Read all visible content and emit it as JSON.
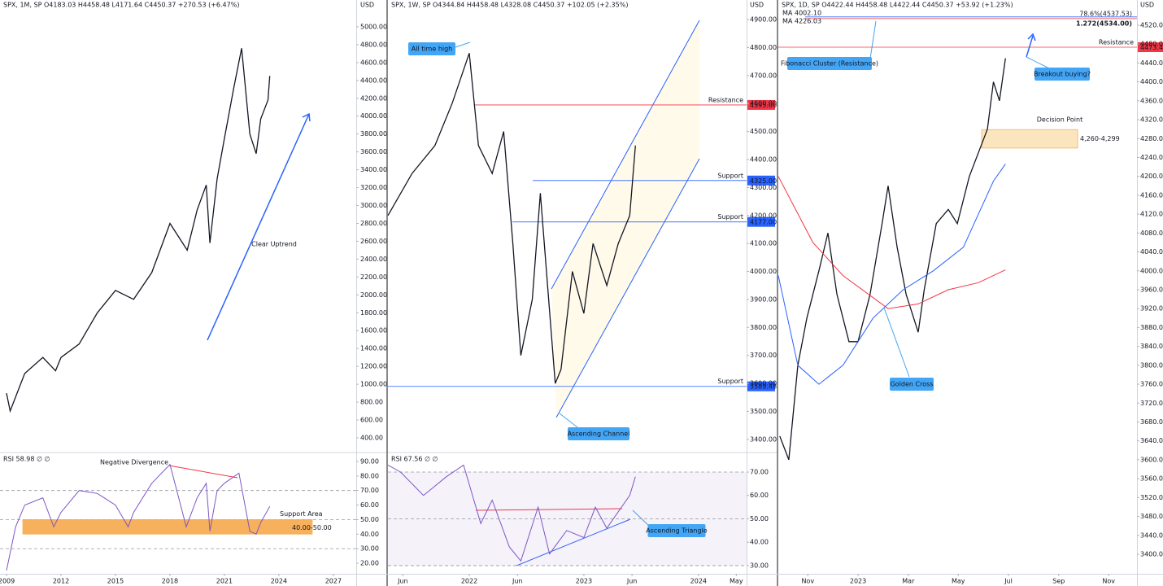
{
  "chart_data": [
    {
      "type": "line",
      "title": "SPX, 1M, SP  O4183.03  H4458.48  L4171.64  C4450.37  +270.53 (+6.47%)",
      "unit": "USD",
      "xlim": [
        2008.64,
        2028.26
      ],
      "ylim": [
        245,
        5300
      ],
      "yticks": [
        {
          "value": 400,
          "label": "400.00"
        },
        {
          "value": 600,
          "label": "600.00"
        },
        {
          "value": 800,
          "label": "800.00"
        },
        {
          "value": 1000,
          "label": "1000.00"
        },
        {
          "value": 1200,
          "label": "1200.00"
        },
        {
          "value": 1400,
          "label": "1400.00"
        },
        {
          "value": 1600,
          "label": "1600.00"
        },
        {
          "value": 1800,
          "label": "1800.00"
        },
        {
          "value": 2000,
          "label": "2000.00"
        },
        {
          "value": 2200,
          "label": "2200.00"
        },
        {
          "value": 2400,
          "label": "2400.00"
        },
        {
          "value": 2600,
          "label": "2600.00"
        },
        {
          "value": 2800,
          "label": "2800.00"
        },
        {
          "value": 3000,
          "label": "3000.00"
        },
        {
          "value": 3200,
          "label": "3200.00"
        },
        {
          "value": 3400,
          "label": "3400.00"
        },
        {
          "value": 3600,
          "label": "3600.00"
        },
        {
          "value": 3800,
          "label": "3800.00"
        },
        {
          "value": 4000,
          "label": "4000.00"
        },
        {
          "value": 4200,
          "label": "4200.00"
        },
        {
          "value": 4400,
          "label": "4400.00"
        },
        {
          "value": 4600,
          "label": "4600.00"
        },
        {
          "value": 4800,
          "label": "4800.00"
        },
        {
          "value": 5000,
          "label": "5000.00"
        }
      ],
      "series": [
        {
          "color": "#131722",
          "x": [
            2009.0,
            2009.2,
            2010.0,
            2011.0,
            2011.7,
            2012.0,
            2013.0,
            2014.0,
            2015.0,
            2016.0,
            2017.0,
            2018.0,
            2018.95,
            2019.5,
            2020.0,
            2020.2,
            2020.6,
            2021.0,
            2021.5,
            2021.95,
            2022.4,
            2022.75,
            2023.0,
            2023.4,
            2023.5
          ],
          "values": [
            900,
            700,
            1120,
            1300,
            1150,
            1300,
            1450,
            1800,
            2050,
            1950,
            2250,
            2800,
            2500,
            2950,
            3230,
            2580,
            3300,
            3750,
            4300,
            4760,
            3800,
            3580,
            3970,
            4180,
            4450
          ]
        }
      ],
      "annotations": [
        "Clear Uptrend"
      ]
    },
    {
      "type": "line",
      "title": "RSI  58.98  ∅  ∅",
      "xlim": [
        2008.64,
        2028.26
      ],
      "ylim": [
        12.7,
        95.6
      ],
      "xticks": [
        2009,
        2012,
        2015,
        2018,
        2021,
        2024,
        2027
      ],
      "yticks": [
        {
          "value": 20,
          "label": "20.00"
        },
        {
          "value": 30,
          "label": "30.00"
        },
        {
          "value": 40,
          "label": "40.00"
        },
        {
          "value": 50,
          "label": "50.00"
        },
        {
          "value": 60,
          "label": "60.00"
        },
        {
          "value": 70,
          "label": "70.00"
        },
        {
          "value": 80,
          "label": "80.00"
        },
        {
          "value": 90,
          "label": "90.00"
        }
      ],
      "rsi_levels": [
        70,
        50,
        30
      ],
      "shaded": false,
      "series": [
        {
          "color": "#7e57c2",
          "x": [
            2009.0,
            2009.5,
            2010.0,
            2011.0,
            2011.6,
            2012.0,
            2013.0,
            2014.0,
            2015.0,
            2015.7,
            2016.0,
            2017.0,
            2018.0,
            2018.9,
            2019.5,
            2020.0,
            2020.2,
            2020.6,
            2021.0,
            2021.8,
            2022.4,
            2022.75,
            2023.0,
            2023.5
          ],
          "values": [
            15,
            45,
            60,
            65,
            45,
            55,
            70,
            68,
            60,
            45,
            55,
            75,
            88,
            45,
            65,
            75,
            42,
            70,
            75,
            82,
            42,
            40,
            48,
            59
          ]
        }
      ],
      "zone": {
        "name": "Support Area",
        "low": 40,
        "high": 50,
        "label": "40.00-50.00",
        "color": "#f7a84a"
      },
      "annotations": [
        "Negative Divergence"
      ]
    },
    {
      "type": "line",
      "title": "SPX, 1W, SP  O4344.84  H4458.48  L4328.08  C4450.37  +102.05 (+2.35%)",
      "unit": "USD",
      "xlim": [
        2021.29,
        2024.42
      ],
      "ylim": [
        3356,
        4970
      ],
      "yticks": [
        {
          "value": 3400,
          "label": "3400.00"
        },
        {
          "value": 3500,
          "label": "3500.00"
        },
        {
          "value": 3600,
          "label": "3600.00"
        },
        {
          "value": 3700,
          "label": "3700.00"
        },
        {
          "value": 3800,
          "label": "3800.00"
        },
        {
          "value": 3900,
          "label": "3900.00"
        },
        {
          "value": 4000,
          "label": "4000.00"
        },
        {
          "value": 4100,
          "label": "4100.00"
        },
        {
          "value": 4200,
          "label": "4200.00"
        },
        {
          "value": 4300,
          "label": "4300.00"
        },
        {
          "value": 4400,
          "label": "4400.00"
        },
        {
          "value": 4500,
          "label": "4500.00"
        },
        {
          "value": 4600,
          "label": "4600.00"
        },
        {
          "value": 4700,
          "label": "4700.00"
        },
        {
          "value": 4800,
          "label": "4800.00"
        },
        {
          "value": 4900,
          "label": "4900.00"
        }
      ],
      "series": [
        {
          "color": "#131722",
          "x": [
            2021.29,
            2021.5,
            2021.7,
            2021.85,
            2022.0,
            2022.08,
            2022.2,
            2022.3,
            2022.38,
            2022.45,
            2022.55,
            2022.62,
            2022.75,
            2022.8,
            2022.9,
            2023.0,
            2023.08,
            2023.2,
            2023.3,
            2023.4,
            2023.45
          ],
          "values": [
            4200,
            4350,
            4450,
            4600,
            4780,
            4450,
            4350,
            4500,
            4100,
            3700,
            3900,
            4280,
            3600,
            3650,
            4000,
            3850,
            4100,
            3950,
            4100,
            4200,
            4450
          ]
        }
      ],
      "levels": [
        {
          "name": "Resistance",
          "value": 4595,
          "label": "4595.00",
          "color": "#f23645",
          "label_at": "axis"
        },
        {
          "name": "Support",
          "value": 4325,
          "label": "4325.00",
          "color": "#2962ff",
          "label_at": "axis"
        },
        {
          "name": "Support",
          "value": 4177,
          "label": "4177.00",
          "color": "#2962ff",
          "label_at": "axis"
        },
        {
          "name": "Support",
          "value": 3589.48,
          "label": "3589.48",
          "color": "#2962ff",
          "label_at": "axis"
        }
      ],
      "annotations": [
        "All time high",
        "Ascending Channel"
      ]
    },
    {
      "type": "line",
      "title": "RSI  67.56  ∅  ∅",
      "xlim": [
        2021.29,
        2024.42
      ],
      "ylim": [
        26.5,
        78.0
      ],
      "xticks": [
        {
          "value": 2021.42,
          "label": "Jun"
        },
        2022,
        {
          "value": 2022.42,
          "label": "Jun"
        },
        2023,
        {
          "value": 2023.42,
          "label": "Jun"
        },
        2024,
        {
          "value": 2024.33,
          "label": "May"
        }
      ],
      "yticks": [
        {
          "value": 30,
          "label": "30.00"
        },
        {
          "value": 40,
          "label": "40.00"
        },
        {
          "value": 50,
          "label": "50.00"
        },
        {
          "value": 60,
          "label": "60.00"
        },
        {
          "value": 70,
          "label": "70.00"
        }
      ],
      "rsi_levels": [
        70,
        50,
        30
      ],
      "shaded": true,
      "series": [
        {
          "color": "#7e57c2",
          "x": [
            2021.29,
            2021.4,
            2021.6,
            2021.8,
            2021.95,
            2022.1,
            2022.2,
            2022.35,
            2022.45,
            2022.6,
            2022.7,
            2022.85,
            2023.0,
            2023.1,
            2023.2,
            2023.3,
            2023.4,
            2023.45
          ],
          "values": [
            73,
            70,
            60,
            68,
            73,
            48,
            58,
            38,
            32,
            55,
            35,
            45,
            42,
            55,
            46,
            53,
            60,
            68
          ]
        }
      ],
      "annotations": [
        "Ascending Triangle"
      ]
    },
    {
      "type": "line",
      "title": "SPX, 1D, SP  O4422.44  H4458.48  L4422.44  C4450.37  +53.92 (+1.23%)",
      "unit": "USD",
      "xlim": [
        2022.735,
        2023.927
      ],
      "ylim": [
        3358.6,
        4573.4
      ],
      "xticks": [
        {
          "value": 2022.833,
          "label": "Nov"
        },
        2023,
        {
          "value": 2023.167,
          "label": "Mar"
        },
        {
          "value": 2023.333,
          "label": "May"
        },
        {
          "value": 2023.5,
          "label": "Jul"
        },
        {
          "value": 2023.667,
          "label": "Sep"
        },
        {
          "value": 2023.833,
          "label": "Nov"
        }
      ],
      "yticks": [
        {
          "value": 3400,
          "label": "3400.00"
        },
        {
          "value": 3440,
          "label": "3440.00"
        },
        {
          "value": 3480,
          "label": "3480.00"
        },
        {
          "value": 3520,
          "label": "3520.00"
        },
        {
          "value": 3560,
          "label": "3560.00"
        },
        {
          "value": 3600,
          "label": "3600.00"
        },
        {
          "value": 3640,
          "label": "3640.00"
        },
        {
          "value": 3680,
          "label": "3680.00"
        },
        {
          "value": 3720,
          "label": "3720.00"
        },
        {
          "value": 3760,
          "label": "3760.00"
        },
        {
          "value": 3800,
          "label": "3800.00"
        },
        {
          "value": 3840,
          "label": "3840.00"
        },
        {
          "value": 3880,
          "label": "3880.00"
        },
        {
          "value": 3920,
          "label": "3920.00"
        },
        {
          "value": 3960,
          "label": "3960.00"
        },
        {
          "value": 4000,
          "label": "4000.00"
        },
        {
          "value": 4040,
          "label": "4040.00"
        },
        {
          "value": 4080,
          "label": "4080.00"
        },
        {
          "value": 4120,
          "label": "4120.00"
        },
        {
          "value": 4160,
          "label": "4160.00"
        },
        {
          "value": 4200,
          "label": "4200.00"
        },
        {
          "value": 4240,
          "label": "4240.00"
        },
        {
          "value": 4280,
          "label": "4280.00"
        },
        {
          "value": 4320,
          "label": "4320.00"
        },
        {
          "value": 4360,
          "label": "4360.00"
        },
        {
          "value": 4400,
          "label": "4400.00"
        },
        {
          "value": 4440,
          "label": "4440.00"
        },
        {
          "value": 4480,
          "label": "4480.00"
        },
        {
          "value": 4520,
          "label": "4520.00"
        }
      ],
      "series": [
        {
          "color": "#131722",
          "x": [
            2022.74,
            2022.77,
            2022.8,
            2022.83,
            2022.87,
            2022.9,
            2022.93,
            2022.97,
            2023.0,
            2023.04,
            2023.08,
            2023.1,
            2023.13,
            2023.16,
            2023.2,
            2023.22,
            2023.26,
            2023.3,
            2023.33,
            2023.37,
            2023.4,
            2023.43,
            2023.45,
            2023.47,
            2023.49
          ],
          "values": [
            3650,
            3600,
            3800,
            3900,
            4000,
            4080,
            3950,
            3850,
            3850,
            3950,
            4100,
            4180,
            4050,
            3950,
            3870,
            3960,
            4100,
            4130,
            4100,
            4200,
            4250,
            4300,
            4400,
            4360,
            4450
          ]
        },
        {
          "name": "MA",
          "legend_value": "4002.10",
          "color": "#f23645",
          "x": [
            2022.735,
            2022.85,
            2022.95,
            2023.1,
            2023.2,
            2023.3,
            2023.4,
            2023.49
          ],
          "values": [
            4200,
            4060,
            3990,
            3920,
            3930,
            3960,
            3975,
            4002
          ]
        },
        {
          "name": "MA",
          "legend_value": "4226.03",
          "color": "#2962ff",
          "x": [
            2022.735,
            2022.8,
            2022.87,
            2022.95,
            2023.05,
            2023.15,
            2023.25,
            2023.35,
            2023.45,
            2023.49
          ],
          "values": [
            3990,
            3800,
            3760,
            3800,
            3900,
            3960,
            4000,
            4050,
            4190,
            4226
          ]
        }
      ],
      "levels": [
        {
          "value": 4537.53,
          "label": "78.6%(4537.53)",
          "color": "#2962ff",
          "label_at": "chart"
        },
        {
          "value": 4534,
          "label": "1.272(4534.00)",
          "color": "#f23645",
          "label_at": "chart"
        },
        {
          "name": "Resistance",
          "value": 4473.43,
          "label": "4473.43",
          "color": "#f23645",
          "label_at": "axis"
        }
      ],
      "zone": {
        "name": "Decision Point",
        "low": 4260,
        "high": 4299,
        "label": "4,260-4,299",
        "color": "#fbe3b8"
      },
      "annotations": [
        "Fibonacci Cluster (Resistance)",
        "Breakout buying?",
        "Golden Cross"
      ]
    }
  ]
}
